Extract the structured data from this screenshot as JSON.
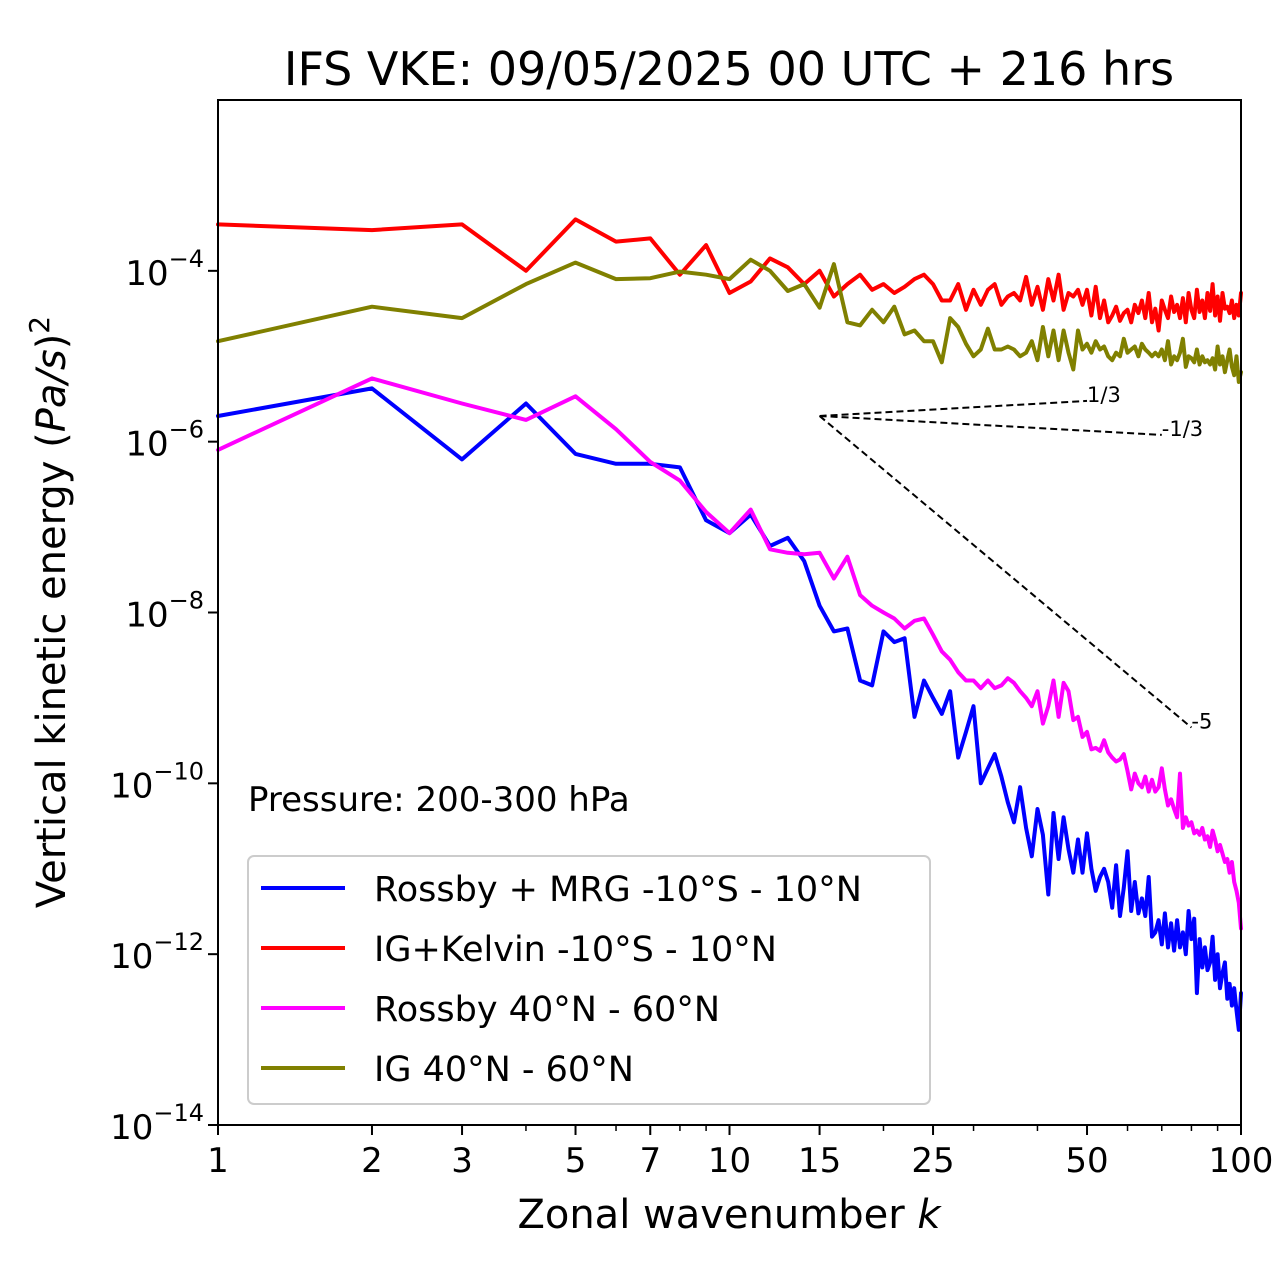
{
  "chart_data": {
    "type": "line",
    "title": "IFS VKE: 09/05/2025 00 UTC + 216 hrs",
    "xlabel": "Zonal wavenumber k",
    "xlabel_main": "Zonal wavenumber ",
    "xlabel_var": "k",
    "ylabel": "Vertical kinetic energy (Pa/s)²",
    "ylabel_main": "Vertical kinetic energy (",
    "ylabel_var": "Pa/s",
    "ylabel_close": ")",
    "ylabel_exp": "2",
    "xscale": "log",
    "yscale": "log",
    "xlim": [
      1,
      100
    ],
    "ylim": [
      1e-14,
      0.01
    ],
    "grid": false,
    "legend_position": "lower-left",
    "annotation": "Pressure: 200-300 hPa",
    "x_ticks": [
      {
        "value": 1,
        "label": "1"
      },
      {
        "value": 2,
        "label": "2"
      },
      {
        "value": 3,
        "label": "3"
      },
      {
        "value": 5,
        "label": "5"
      },
      {
        "value": 7,
        "label": "7"
      },
      {
        "value": 10,
        "label": "10"
      },
      {
        "value": 15,
        "label": "15"
      },
      {
        "value": 25,
        "label": "25"
      },
      {
        "value": 50,
        "label": "50"
      },
      {
        "value": 100,
        "label": "100"
      }
    ],
    "y_ticks": [
      {
        "value": 1e-14,
        "base": "10",
        "exp": "−14"
      },
      {
        "value": 1e-12,
        "base": "10",
        "exp": "−12"
      },
      {
        "value": 1e-10,
        "base": "10",
        "exp": "−10"
      },
      {
        "value": 1e-08,
        "base": "10",
        "exp": "−8"
      },
      {
        "value": 1e-06,
        "base": "10",
        "exp": "−6"
      },
      {
        "value": 0.0001,
        "base": "10",
        "exp": "−4"
      }
    ],
    "slope_lines": [
      {
        "label": "1/3",
        "x": [
          15,
          50
        ],
        "y": [
          2e-06,
          3e-06
        ]
      },
      {
        "label": "-1/3",
        "x": [
          15,
          70
        ],
        "y": [
          2e-06,
          1.2e-06
        ]
      },
      {
        "label": "-5",
        "x": [
          15,
          80
        ],
        "y": [
          2e-06,
          4.5e-10
        ]
      }
    ],
    "series": [
      {
        "name": "Rossby + MRG -10°S - 10°N",
        "color": "#0000ff",
        "x": [
          1,
          2,
          3,
          4,
          5,
          6,
          7,
          8,
          9,
          10,
          11,
          12,
          13,
          14,
          15,
          16,
          17,
          18,
          19,
          20,
          21,
          22,
          23,
          24,
          25,
          26,
          27,
          28,
          29,
          30,
          31,
          32,
          33,
          34,
          35,
          36,
          37,
          38,
          39,
          40,
          41,
          42,
          43,
          44,
          45,
          46,
          47,
          48,
          49,
          50,
          51,
          52,
          53,
          54,
          55,
          56,
          57,
          58,
          59,
          60,
          61,
          62,
          63,
          64,
          65,
          66,
          67,
          68,
          69,
          70,
          71,
          72,
          73,
          74,
          75,
          76,
          77,
          78,
          79,
          80,
          81,
          82,
          83,
          84,
          85,
          86,
          87,
          88,
          89,
          90,
          91,
          92,
          93,
          94,
          95,
          96,
          97,
          98,
          99,
          100
        ],
        "y": [
          2e-06,
          4.2e-06,
          6.2e-07,
          2.8e-06,
          7.2e-07,
          5.5e-07,
          5.5e-07,
          5e-07,
          1.2e-07,
          8.5e-08,
          1.4e-07,
          6e-08,
          7.5e-08,
          4e-08,
          1.2e-08,
          6e-09,
          6.5e-09,
          1.6e-09,
          1.4e-09,
          6e-09,
          4.5e-09,
          5e-09,
          6e-10,
          1.6e-09,
          1e-09,
          6.5e-10,
          1.2e-09,
          2e-10,
          4e-10,
          8e-10,
          1e-10,
          1.5e-10,
          2.2e-10,
          1.2e-10,
          6e-11,
          3.5e-11,
          9e-11,
          3e-11,
          1.4e-11,
          5e-11,
          2.5e-11,
          5e-12,
          4.5e-11,
          1.3e-11,
          4e-11,
          1.7e-11,
          9e-12,
          2.2e-11,
          9e-12,
          2.6e-11,
          1e-11,
          5.5e-12,
          8e-12,
          1e-11,
          7e-12,
          3.5e-12,
          1.1e-11,
          2.8e-12,
          6e-12,
          1.6e-11,
          3.2e-12,
          7e-12,
          3e-12,
          4.5e-12,
          2.8e-12,
          8e-12,
          1.6e-12,
          1.8e-12,
          2.5e-12,
          1.3e-12,
          3e-12,
          1.2e-12,
          2.3e-12,
          1.1e-12,
          2.5e-12,
          1.2e-12,
          1.8e-12,
          1e-12,
          3.2e-12,
          1.5e-12,
          2.6e-12,
          3.5e-13,
          1.5e-12,
          7e-13,
          1.2e-12,
          6.5e-13,
          8e-13,
          1.6e-12,
          5e-13,
          1e-12,
          4e-13,
          6e-13,
          8e-13,
          3e-13,
          4.5e-13,
          2.5e-13,
          4e-13,
          2.2e-13,
          1.3e-13,
          3.5e-13
        ]
      },
      {
        "name": "IG+Kelvin -10°S - 10°N",
        "color": "#ff0000",
        "x": [
          1,
          2,
          3,
          4,
          5,
          6,
          7,
          8,
          9,
          10,
          11,
          12,
          13,
          14,
          15,
          16,
          17,
          18,
          19,
          20,
          21,
          22,
          23,
          24,
          25,
          26,
          27,
          28,
          29,
          30,
          31,
          32,
          33,
          34,
          35,
          36,
          37,
          38,
          39,
          40,
          41,
          42,
          43,
          44,
          45,
          46,
          47,
          48,
          49,
          50,
          51,
          52,
          53,
          54,
          55,
          56,
          57,
          58,
          59,
          60,
          61,
          62,
          63,
          64,
          65,
          66,
          67,
          68,
          69,
          70,
          71,
          72,
          73,
          74,
          75,
          76,
          77,
          78,
          79,
          80,
          81,
          82,
          83,
          84,
          85,
          86,
          87,
          88,
          89,
          90,
          91,
          92,
          93,
          94,
          95,
          96,
          97,
          98,
          99,
          100
        ],
        "y": [
          0.00035,
          0.0003,
          0.00035,
          0.0001,
          0.0004,
          0.00022,
          0.00024,
          9e-05,
          0.0002,
          5.5e-05,
          7.5e-05,
          0.00014,
          0.00011,
          7e-05,
          0.0001,
          5e-05,
          7e-05,
          9e-05,
          6e-05,
          7e-05,
          5.5e-05,
          6.5e-05,
          8e-05,
          9e-05,
          7e-05,
          4.5e-05,
          4.5e-05,
          7e-05,
          3.5e-05,
          6e-05,
          4e-05,
          6e-05,
          7e-05,
          4e-05,
          5e-05,
          5.5e-05,
          4.5e-05,
          8.5e-05,
          4e-05,
          6.5e-05,
          3.5e-05,
          8e-05,
          4.5e-05,
          9e-05,
          3.5e-05,
          5.5e-05,
          5e-05,
          6e-05,
          4e-05,
          6e-05,
          3e-05,
          6.5e-05,
          2.8e-05,
          4.5e-05,
          2.5e-05,
          3e-05,
          3.8e-05,
          2.6e-05,
          3.2e-05,
          3.5e-05,
          2.5e-05,
          4e-05,
          3.2e-05,
          4.5e-05,
          2.8e-05,
          5.5e-05,
          2.5e-05,
          3.6e-05,
          2e-05,
          4.5e-05,
          3.5e-05,
          2.8e-05,
          5e-05,
          3.3e-05,
          4e-05,
          2.8e-05,
          4.8e-05,
          2.5e-05,
          5.5e-05,
          3.5e-05,
          2.8e-05,
          6e-05,
          3.3e-05,
          4.5e-05,
          2.8e-05,
          5.5e-05,
          3.4e-05,
          7e-05,
          3e-05,
          5e-05,
          2.6e-05,
          5.5e-05,
          3.6e-05,
          3.8e-05,
          3.2e-05,
          4.5e-05,
          2.8e-05,
          4e-05,
          3e-05,
          5.5e-05
        ]
      },
      {
        "name": "Rossby 40°N - 60°N",
        "color": "#ff00ff",
        "x": [
          1,
          2,
          3,
          4,
          5,
          6,
          7,
          8,
          9,
          10,
          11,
          12,
          13,
          14,
          15,
          16,
          17,
          18,
          19,
          20,
          21,
          22,
          23,
          24,
          25,
          26,
          27,
          28,
          29,
          30,
          31,
          32,
          33,
          34,
          35,
          36,
          37,
          38,
          39,
          40,
          41,
          42,
          43,
          44,
          45,
          46,
          47,
          48,
          49,
          50,
          51,
          52,
          53,
          54,
          55,
          56,
          57,
          58,
          59,
          60,
          61,
          62,
          63,
          64,
          65,
          66,
          67,
          68,
          69,
          70,
          71,
          72,
          73,
          74,
          75,
          76,
          77,
          78,
          79,
          80,
          81,
          82,
          83,
          84,
          85,
          86,
          87,
          88,
          89,
          90,
          91,
          92,
          93,
          94,
          95,
          96,
          97,
          98,
          99,
          100
        ],
        "y": [
          8e-07,
          5.5e-06,
          2.8e-06,
          1.8e-06,
          3.4e-06,
          1.4e-06,
          5.8e-07,
          3.5e-07,
          1.5e-07,
          8.5e-08,
          1.6e-07,
          5.5e-08,
          5e-08,
          4.8e-08,
          5e-08,
          2.5e-08,
          4.5e-08,
          1.6e-08,
          1.2e-08,
          1e-08,
          8.5e-09,
          6.5e-09,
          8e-09,
          8.5e-09,
          5.5e-09,
          3.5e-09,
          2.8e-09,
          2e-09,
          1.6e-09,
          1.6e-09,
          1.3e-09,
          1.6e-09,
          1.3e-09,
          1.4e-09,
          1.7e-09,
          1.5e-09,
          1.2e-09,
          1e-09,
          8e-10,
          1.2e-09,
          5e-10,
          8e-10,
          1.6e-09,
          6e-10,
          1.5e-09,
          1.2e-09,
          5.5e-10,
          6e-10,
          3.5e-10,
          4e-10,
          2.5e-10,
          2.6e-10,
          2.4e-10,
          3.2e-10,
          2.3e-10,
          2e-10,
          1.8e-10,
          1.9e-10,
          2.2e-10,
          1.4e-10,
          8.5e-11,
          1.3e-10,
          1e-10,
          9e-11,
          1.2e-10,
          8e-11,
          1.1e-10,
          8e-11,
          9e-11,
          1.5e-10,
          8.5e-11,
          5.5e-11,
          6.5e-11,
          5e-11,
          4e-11,
          1.3e-10,
          3e-11,
          4e-11,
          3.2e-11,
          3.5e-11,
          2.6e-11,
          2.8e-11,
          2.5e-11,
          3e-11,
          2.2e-11,
          2.4e-11,
          1.8e-11,
          2.8e-11,
          2.2e-11,
          1.6e-11,
          1.9e-11,
          1.5e-11,
          1.2e-11,
          1.3e-11,
          9e-12,
          1.2e-11,
          7e-12,
          5.5e-12,
          4e-12,
          2e-12
        ]
      },
      {
        "name": "IG 40°N - 60°N",
        "color": "#808000",
        "x": [
          1,
          2,
          3,
          4,
          5,
          6,
          7,
          8,
          9,
          10,
          11,
          12,
          13,
          14,
          15,
          16,
          17,
          18,
          19,
          20,
          21,
          22,
          23,
          24,
          25,
          26,
          27,
          28,
          29,
          30,
          31,
          32,
          33,
          34,
          35,
          36,
          37,
          38,
          39,
          40,
          41,
          42,
          43,
          44,
          45,
          46,
          47,
          48,
          49,
          50,
          51,
          52,
          53,
          54,
          55,
          56,
          57,
          58,
          59,
          60,
          61,
          62,
          63,
          64,
          65,
          66,
          67,
          68,
          69,
          70,
          71,
          72,
          73,
          74,
          75,
          76,
          77,
          78,
          79,
          80,
          81,
          82,
          83,
          84,
          85,
          86,
          87,
          88,
          89,
          90,
          91,
          92,
          93,
          94,
          95,
          96,
          97,
          98,
          99,
          100
        ],
        "y": [
          1.5e-05,
          3.8e-05,
          2.8e-05,
          7e-05,
          0.000125,
          8e-05,
          8.2e-05,
          9.8e-05,
          9e-05,
          8e-05,
          0.000135,
          0.0001,
          5.8e-05,
          7e-05,
          3.7e-05,
          0.00012,
          2.5e-05,
          2.3e-05,
          3.5e-05,
          2.5e-05,
          3.8e-05,
          1.8e-05,
          2e-05,
          1.5e-05,
          1.5e-05,
          8.5e-06,
          2.8e-05,
          2.2e-05,
          1.4e-05,
          1e-05,
          1.2e-05,
          2.1e-05,
          1.2e-05,
          1.2e-05,
          1.3e-05,
          1.2e-05,
          1e-05,
          1.1e-05,
          1.5e-05,
          9e-06,
          2.2e-05,
          1e-05,
          2e-05,
          9e-06,
          2e-05,
          1.1e-05,
          7e-06,
          2e-05,
          1.2e-05,
          1.4e-05,
          1.1e-05,
          1.5e-05,
          1.2e-05,
          1.3e-05,
          1e-05,
          9e-06,
          1.1e-05,
          1e-05,
          1.6e-05,
          1.1e-05,
          1.2e-05,
          1.3e-05,
          1e-05,
          1.4e-05,
          1.2e-05,
          1.1e-05,
          1e-05,
          1.1e-05,
          1e-05,
          1.2e-05,
          9e-06,
          1.5e-05,
          8e-06,
          1e-05,
          9e-06,
          1.1e-05,
          1.6e-05,
          7.5e-06,
          1e-05,
          9.5e-06,
          8.5e-06,
          1.2e-05,
          8e-06,
          1e-05,
          8.5e-06,
          9e-06,
          8e-06,
          9.5e-06,
          7e-06,
          1.3e-05,
          8e-06,
          1e-05,
          6.5e-06,
          9e-06,
          1.2e-05,
          7.5e-06,
          6e-06,
          1e-05,
          5e-06,
          6.5e-06
        ]
      }
    ]
  }
}
